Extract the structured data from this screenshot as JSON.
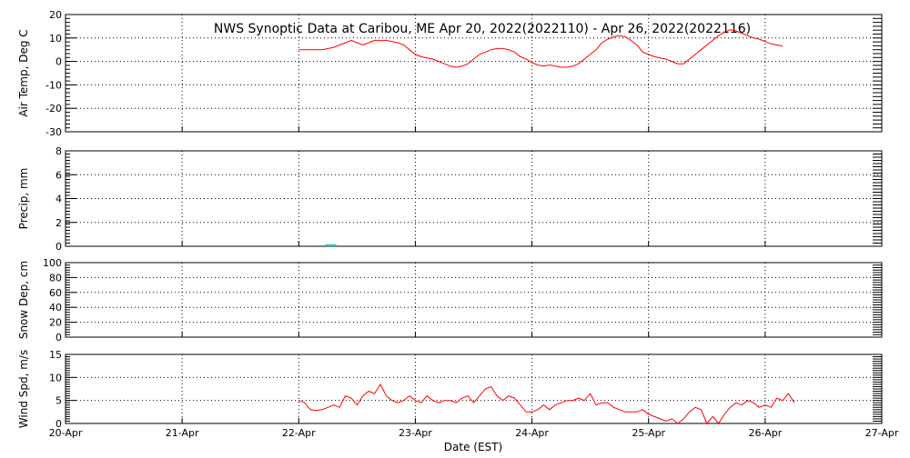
{
  "chart_data": {
    "type": "line",
    "title": "NWS Synoptic Data at Caribou, ME   Apr 20, 2022(2022110) - Apr 26, 2022(2022116)",
    "xlabel": "Date (EST)",
    "x_ticks": [
      "20-Apr",
      "21-Apr",
      "22-Apr",
      "23-Apr",
      "24-Apr",
      "25-Apr",
      "26-Apr",
      "27-Apr"
    ],
    "xlim_days": [
      0,
      7
    ],
    "grid": "dotted",
    "panels": [
      {
        "id": "air-temp",
        "ylabel": "Air Temp, Deg C",
        "ylim": [
          -30,
          20
        ],
        "yticks": [
          -30,
          -20,
          -10,
          0,
          10,
          20
        ],
        "color": "#ff0000",
        "series": [
          [
            2.0,
            5
          ],
          [
            2.1,
            5
          ],
          [
            2.2,
            5
          ],
          [
            2.3,
            6
          ],
          [
            2.35,
            7
          ],
          [
            2.4,
            8
          ],
          [
            2.45,
            9
          ],
          [
            2.5,
            8
          ],
          [
            2.55,
            7
          ],
          [
            2.6,
            8
          ],
          [
            2.65,
            9
          ],
          [
            2.7,
            9
          ],
          [
            2.75,
            9
          ],
          [
            2.8,
            8.5
          ],
          [
            2.85,
            8
          ],
          [
            2.9,
            7
          ],
          [
            2.95,
            5
          ],
          [
            3.0,
            3
          ],
          [
            3.05,
            2
          ],
          [
            3.1,
            1.5
          ],
          [
            3.15,
            1
          ],
          [
            3.2,
            0
          ],
          [
            3.25,
            -1
          ],
          [
            3.3,
            -2
          ],
          [
            3.35,
            -2.5
          ],
          [
            3.4,
            -2
          ],
          [
            3.45,
            -1
          ],
          [
            3.5,
            1
          ],
          [
            3.55,
            3
          ],
          [
            3.6,
            4
          ],
          [
            3.65,
            5
          ],
          [
            3.7,
            5.5
          ],
          [
            3.75,
            5.5
          ],
          [
            3.8,
            5
          ],
          [
            3.85,
            4
          ],
          [
            3.9,
            2
          ],
          [
            3.95,
            1
          ],
          [
            4.0,
            -0.5
          ],
          [
            4.05,
            -1.5
          ],
          [
            4.1,
            -2
          ],
          [
            4.15,
            -1.5
          ],
          [
            4.2,
            -2
          ],
          [
            4.25,
            -2.5
          ],
          [
            4.3,
            -2.5
          ],
          [
            4.35,
            -2
          ],
          [
            4.4,
            -1
          ],
          [
            4.45,
            1
          ],
          [
            4.5,
            3
          ],
          [
            4.55,
            5
          ],
          [
            4.6,
            8
          ],
          [
            4.65,
            9.5
          ],
          [
            4.7,
            10.5
          ],
          [
            4.75,
            11
          ],
          [
            4.8,
            10.5
          ],
          [
            4.85,
            9
          ],
          [
            4.9,
            7
          ],
          [
            4.95,
            4
          ],
          [
            5.0,
            3
          ],
          [
            5.05,
            2
          ],
          [
            5.1,
            1.5
          ],
          [
            5.15,
            1
          ],
          [
            5.2,
            0
          ],
          [
            5.25,
            -1
          ],
          [
            5.3,
            -1
          ],
          [
            5.35,
            1
          ],
          [
            5.4,
            3
          ],
          [
            5.45,
            5
          ],
          [
            5.5,
            7
          ],
          [
            5.55,
            9
          ],
          [
            5.6,
            11
          ],
          [
            5.65,
            12.5
          ],
          [
            5.7,
            13.5
          ],
          [
            5.75,
            13
          ],
          [
            5.8,
            12
          ],
          [
            5.85,
            11
          ],
          [
            5.9,
            10
          ],
          [
            5.95,
            9.5
          ],
          [
            6.0,
            8.5
          ],
          [
            6.05,
            7.5
          ],
          [
            6.1,
            7
          ],
          [
            6.15,
            6.5
          ]
        ]
      },
      {
        "id": "precip",
        "ylabel": "Precip, mm",
        "ylim": [
          0,
          8
        ],
        "yticks": [
          0,
          2,
          4,
          6,
          8
        ],
        "color": "#00c8c8",
        "series": [
          [
            2.25,
            0.1
          ],
          [
            2.3,
            0.1
          ]
        ]
      },
      {
        "id": "snow-depth",
        "ylabel": "Snow Dep, cm",
        "ylim": [
          0,
          100
        ],
        "yticks": [
          0,
          20,
          40,
          60,
          80,
          100
        ],
        "color": "#ff0000",
        "series": []
      },
      {
        "id": "wind-speed",
        "ylabel": "Wind Spd, m/s",
        "ylim": [
          0,
          15
        ],
        "yticks": [
          0,
          5,
          10,
          15
        ],
        "color": "#ff0000",
        "series": [
          [
            2.0,
            5
          ],
          [
            2.05,
            4.5
          ],
          [
            2.1,
            3
          ],
          [
            2.15,
            2.8
          ],
          [
            2.2,
            3
          ],
          [
            2.25,
            3.5
          ],
          [
            2.3,
            4
          ],
          [
            2.35,
            3.5
          ],
          [
            2.4,
            6
          ],
          [
            2.45,
            5.5
          ],
          [
            2.5,
            4
          ],
          [
            2.55,
            6
          ],
          [
            2.6,
            7
          ],
          [
            2.65,
            6.5
          ],
          [
            2.7,
            8.5
          ],
          [
            2.75,
            6
          ],
          [
            2.8,
            5
          ],
          [
            2.85,
            4.5
          ],
          [
            2.9,
            5
          ],
          [
            2.95,
            6
          ],
          [
            3.0,
            5
          ],
          [
            3.05,
            4.5
          ],
          [
            3.1,
            6
          ],
          [
            3.15,
            5
          ],
          [
            3.2,
            4.5
          ],
          [
            3.25,
            5
          ],
          [
            3.3,
            5
          ],
          [
            3.35,
            4.5
          ],
          [
            3.4,
            5.5
          ],
          [
            3.45,
            6
          ],
          [
            3.5,
            4.5
          ],
          [
            3.55,
            6
          ],
          [
            3.6,
            7.5
          ],
          [
            3.65,
            8
          ],
          [
            3.7,
            6
          ],
          [
            3.75,
            5
          ],
          [
            3.8,
            6
          ],
          [
            3.85,
            5.5
          ],
          [
            3.9,
            4
          ],
          [
            3.95,
            2.5
          ],
          [
            4.0,
            2.5
          ],
          [
            4.05,
            3
          ],
          [
            4.1,
            4
          ],
          [
            4.15,
            3
          ],
          [
            4.2,
            4
          ],
          [
            4.25,
            4.5
          ],
          [
            4.3,
            5
          ],
          [
            4.35,
            5
          ],
          [
            4.4,
            5.5
          ],
          [
            4.45,
            5
          ],
          [
            4.5,
            6.5
          ],
          [
            4.55,
            4
          ],
          [
            4.6,
            4.5
          ],
          [
            4.65,
            4.5
          ],
          [
            4.7,
            3.5
          ],
          [
            4.75,
            3
          ],
          [
            4.8,
            2.5
          ],
          [
            4.85,
            2.5
          ],
          [
            4.9,
            2.5
          ],
          [
            4.95,
            3
          ],
          [
            5.0,
            2
          ],
          [
            5.05,
            1.5
          ],
          [
            5.1,
            1
          ],
          [
            5.15,
            0.5
          ],
          [
            5.2,
            1
          ],
          [
            5.25,
            0
          ],
          [
            5.3,
            1
          ],
          [
            5.35,
            2.5
          ],
          [
            5.4,
            3.5
          ],
          [
            5.45,
            3
          ],
          [
            5.5,
            0
          ],
          [
            5.55,
            1.5
          ],
          [
            5.6,
            0
          ],
          [
            5.65,
            2
          ],
          [
            5.7,
            3.5
          ],
          [
            5.75,
            4.5
          ],
          [
            5.8,
            4
          ],
          [
            5.85,
            5
          ],
          [
            5.9,
            4.5
          ],
          [
            5.95,
            3.5
          ],
          [
            6.0,
            4
          ],
          [
            6.05,
            3.5
          ],
          [
            6.1,
            5.5
          ],
          [
            6.15,
            5
          ],
          [
            6.2,
            6.5
          ],
          [
            6.25,
            4.5
          ]
        ]
      }
    ]
  }
}
